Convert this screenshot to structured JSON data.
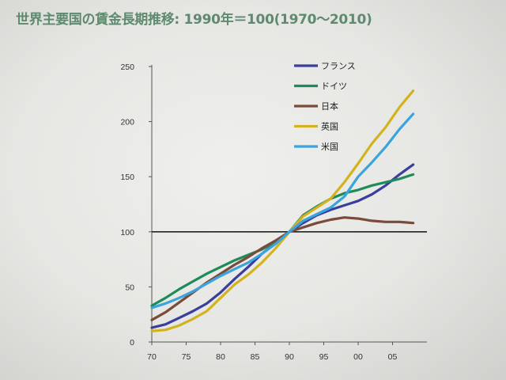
{
  "title": "世界主要国の賃金長期推移: 1990年＝100(1970〜2010)",
  "chart_data": {
    "type": "line",
    "title": "世界主要国の賃金長期推移: 1990年＝100(1970〜2010)",
    "xlabel": "",
    "ylabel": "",
    "x_ticks": [
      "70",
      "75",
      "80",
      "85",
      "90",
      "95",
      "00",
      "05"
    ],
    "y_ticks": [
      "0",
      "50",
      "100",
      "150",
      "200",
      "250"
    ],
    "xlim": [
      1970,
      2010
    ],
    "ylim": [
      0,
      250
    ],
    "grid": false,
    "legend_position": "top-right",
    "reference_line": 100,
    "x": [
      1970,
      1972,
      1974,
      1976,
      1978,
      1980,
      1982,
      1984,
      1986,
      1988,
      1990,
      1992,
      1994,
      1996,
      1998,
      2000,
      2002,
      2004,
      2006,
      2008
    ],
    "series": [
      {
        "name": "フランス",
        "color": "#3a3f9c",
        "values": [
          13,
          16,
          22,
          28,
          35,
          45,
          57,
          68,
          80,
          90,
          100,
          108,
          115,
          120,
          124,
          128,
          134,
          142,
          152,
          161
        ]
      },
      {
        "name": "ドイツ",
        "color": "#1e8c5a",
        "values": [
          33,
          40,
          48,
          55,
          62,
          68,
          74,
          79,
          84,
          91,
          100,
          115,
          123,
          130,
          135,
          138,
          142,
          145,
          148,
          152
        ]
      },
      {
        "name": "日本",
        "color": "#7a4a3a",
        "values": [
          20,
          27,
          36,
          45,
          54,
          62,
          70,
          77,
          85,
          92,
          100,
          104,
          108,
          111,
          113,
          112,
          110,
          109,
          109,
          108
        ]
      },
      {
        "name": "英国",
        "color": "#d4b21e",
        "values": [
          10,
          11,
          15,
          21,
          28,
          40,
          52,
          61,
          72,
          85,
          100,
          114,
          122,
          130,
          145,
          162,
          180,
          195,
          213,
          228
        ]
      },
      {
        "name": "米国",
        "color": "#3aa4dc",
        "values": [
          31,
          35,
          40,
          46,
          53,
          60,
          66,
          72,
          80,
          89,
          100,
          110,
          116,
          122,
          132,
          150,
          163,
          177,
          193,
          207
        ]
      }
    ]
  }
}
